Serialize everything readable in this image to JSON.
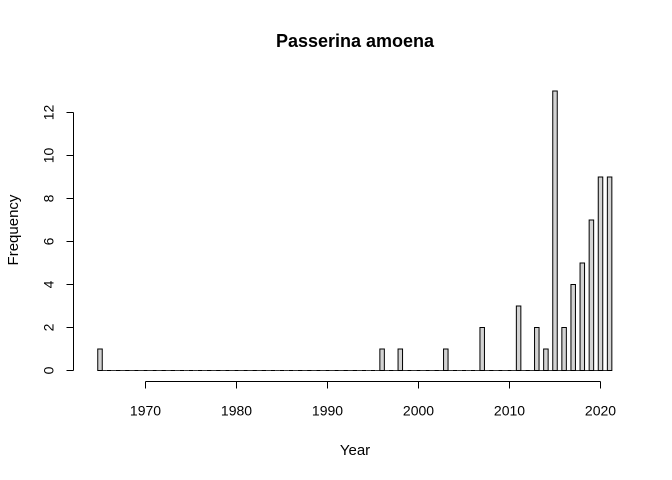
{
  "chart_data": {
    "type": "bar",
    "title": "Passerina amoena",
    "xlabel": "Year",
    "ylabel": "Frequency",
    "x": [
      1965,
      1966,
      1967,
      1968,
      1969,
      1970,
      1971,
      1972,
      1973,
      1974,
      1975,
      1976,
      1977,
      1978,
      1979,
      1980,
      1981,
      1982,
      1983,
      1984,
      1985,
      1986,
      1987,
      1988,
      1989,
      1990,
      1991,
      1992,
      1993,
      1994,
      1995,
      1996,
      1997,
      1998,
      1999,
      2000,
      2001,
      2002,
      2003,
      2004,
      2005,
      2006,
      2007,
      2008,
      2009,
      2010,
      2011,
      2012,
      2013,
      2014,
      2015,
      2016,
      2017,
      2018,
      2019,
      2020,
      2021
    ],
    "values": [
      1,
      0,
      0,
      0,
      0,
      0,
      0,
      0,
      0,
      0,
      0,
      0,
      0,
      0,
      0,
      0,
      0,
      0,
      0,
      0,
      0,
      0,
      0,
      0,
      0,
      0,
      0,
      0,
      0,
      0,
      0,
      1,
      0,
      1,
      0,
      0,
      0,
      0,
      1,
      0,
      0,
      0,
      2,
      0,
      0,
      0,
      3,
      0,
      2,
      1,
      13,
      2,
      4,
      5,
      7,
      9,
      9
    ],
    "xlim": [
      1964.5,
      2021.5
    ],
    "ylim": [
      0,
      13
    ],
    "xticks": [
      1970,
      1980,
      1990,
      2000,
      2010,
      2020
    ],
    "yticks": [
      0,
      2,
      4,
      6,
      8,
      10,
      12
    ],
    "bar_fill": "#d3d3d3",
    "bar_stroke": "#000000",
    "grid": false,
    "legend": "none"
  }
}
